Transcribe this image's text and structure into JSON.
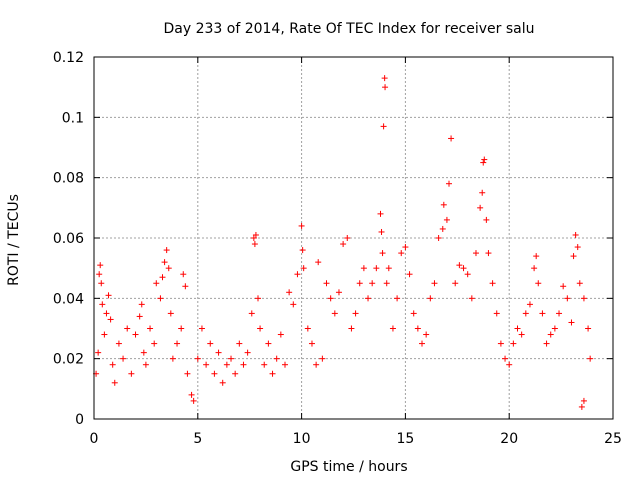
{
  "chart_data": {
    "type": "scatter",
    "title": "Day 233 of 2014, Rate Of TEC Index for receiver salu",
    "xlabel": "GPS time / hours",
    "ylabel": "ROTI / TECUs",
    "xlim": [
      0,
      25
    ],
    "ylim": [
      0,
      0.12
    ],
    "xticks": [
      0,
      5,
      10,
      15,
      20,
      25
    ],
    "xtick_labels": [
      "0",
      "5",
      "10",
      "15",
      "20",
      "25"
    ],
    "yticks": [
      0,
      0.02,
      0.04,
      0.06,
      0.08,
      0.1,
      0.12
    ],
    "ytick_labels": [
      "0",
      "0.02",
      "0.04",
      "0.06",
      "0.08",
      "0.1",
      "0.12"
    ],
    "grid": true,
    "marker": "+",
    "color": "#ff0000",
    "series": [
      {
        "name": "ROTI",
        "points": [
          [
            0.1,
            0.015
          ],
          [
            0.2,
            0.022
          ],
          [
            0.25,
            0.048
          ],
          [
            0.3,
            0.051
          ],
          [
            0.35,
            0.045
          ],
          [
            0.4,
            0.038
          ],
          [
            0.5,
            0.028
          ],
          [
            0.6,
            0.035
          ],
          [
            0.7,
            0.041
          ],
          [
            0.8,
            0.033
          ],
          [
            0.9,
            0.018
          ],
          [
            1.0,
            0.012
          ],
          [
            1.2,
            0.025
          ],
          [
            1.4,
            0.02
          ],
          [
            1.6,
            0.03
          ],
          [
            1.8,
            0.015
          ],
          [
            2.0,
            0.028
          ],
          [
            2.2,
            0.034
          ],
          [
            2.3,
            0.038
          ],
          [
            2.4,
            0.022
          ],
          [
            2.5,
            0.018
          ],
          [
            2.7,
            0.03
          ],
          [
            2.9,
            0.025
          ],
          [
            3.0,
            0.045
          ],
          [
            3.2,
            0.04
          ],
          [
            3.3,
            0.047
          ],
          [
            3.4,
            0.052
          ],
          [
            3.5,
            0.056
          ],
          [
            3.6,
            0.05
          ],
          [
            3.7,
            0.035
          ],
          [
            3.8,
            0.02
          ],
          [
            4.0,
            0.025
          ],
          [
            4.2,
            0.03
          ],
          [
            4.3,
            0.048
          ],
          [
            4.4,
            0.044
          ],
          [
            4.5,
            0.015
          ],
          [
            4.7,
            0.008
          ],
          [
            4.8,
            0.006
          ],
          [
            5.0,
            0.02
          ],
          [
            5.2,
            0.03
          ],
          [
            5.4,
            0.018
          ],
          [
            5.6,
            0.025
          ],
          [
            5.8,
            0.015
          ],
          [
            6.0,
            0.022
          ],
          [
            6.2,
            0.012
          ],
          [
            6.4,
            0.018
          ],
          [
            6.6,
            0.02
          ],
          [
            6.8,
            0.015
          ],
          [
            7.0,
            0.025
          ],
          [
            7.2,
            0.018
          ],
          [
            7.4,
            0.022
          ],
          [
            7.6,
            0.035
          ],
          [
            7.7,
            0.06
          ],
          [
            7.75,
            0.058
          ],
          [
            7.8,
            0.061
          ],
          [
            7.9,
            0.04
          ],
          [
            8.0,
            0.03
          ],
          [
            8.2,
            0.018
          ],
          [
            8.4,
            0.025
          ],
          [
            8.6,
            0.015
          ],
          [
            8.8,
            0.02
          ],
          [
            9.0,
            0.028
          ],
          [
            9.2,
            0.018
          ],
          [
            9.4,
            0.042
          ],
          [
            9.6,
            0.038
          ],
          [
            9.8,
            0.048
          ],
          [
            10.0,
            0.064
          ],
          [
            10.05,
            0.056
          ],
          [
            10.1,
            0.05
          ],
          [
            10.3,
            0.03
          ],
          [
            10.5,
            0.025
          ],
          [
            10.7,
            0.018
          ],
          [
            10.8,
            0.052
          ],
          [
            11.0,
            0.02
          ],
          [
            11.2,
            0.045
          ],
          [
            11.4,
            0.04
          ],
          [
            11.6,
            0.035
          ],
          [
            11.8,
            0.042
          ],
          [
            12.0,
            0.058
          ],
          [
            12.2,
            0.06
          ],
          [
            12.4,
            0.03
          ],
          [
            12.6,
            0.035
          ],
          [
            12.8,
            0.045
          ],
          [
            13.0,
            0.05
          ],
          [
            13.2,
            0.04
          ],
          [
            13.4,
            0.045
          ],
          [
            13.6,
            0.05
          ],
          [
            13.8,
            0.068
          ],
          [
            13.85,
            0.062
          ],
          [
            13.9,
            0.055
          ],
          [
            13.95,
            0.097
          ],
          [
            14.0,
            0.113
          ],
          [
            14.02,
            0.11
          ],
          [
            14.1,
            0.045
          ],
          [
            14.2,
            0.05
          ],
          [
            14.4,
            0.03
          ],
          [
            14.6,
            0.04
          ],
          [
            14.8,
            0.055
          ],
          [
            15.0,
            0.057
          ],
          [
            15.2,
            0.048
          ],
          [
            15.4,
            0.035
          ],
          [
            15.6,
            0.03
          ],
          [
            15.8,
            0.025
          ],
          [
            16.0,
            0.028
          ],
          [
            16.2,
            0.04
          ],
          [
            16.4,
            0.045
          ],
          [
            16.6,
            0.06
          ],
          [
            16.8,
            0.063
          ],
          [
            16.85,
            0.071
          ],
          [
            17.0,
            0.066
          ],
          [
            17.1,
            0.078
          ],
          [
            17.2,
            0.093
          ],
          [
            17.4,
            0.045
          ],
          [
            17.6,
            0.051
          ],
          [
            17.8,
            0.05
          ],
          [
            18.0,
            0.048
          ],
          [
            18.2,
            0.04
          ],
          [
            18.4,
            0.055
          ],
          [
            18.6,
            0.07
          ],
          [
            18.7,
            0.075
          ],
          [
            18.75,
            0.085
          ],
          [
            18.8,
            0.086
          ],
          [
            18.9,
            0.066
          ],
          [
            19.0,
            0.055
          ],
          [
            19.2,
            0.045
          ],
          [
            19.4,
            0.035
          ],
          [
            19.6,
            0.025
          ],
          [
            19.8,
            0.02
          ],
          [
            20.0,
            0.018
          ],
          [
            20.2,
            0.025
          ],
          [
            20.4,
            0.03
          ],
          [
            20.6,
            0.028
          ],
          [
            20.8,
            0.035
          ],
          [
            21.0,
            0.038
          ],
          [
            21.2,
            0.05
          ],
          [
            21.3,
            0.054
          ],
          [
            21.4,
            0.045
          ],
          [
            21.6,
            0.035
          ],
          [
            21.8,
            0.025
          ],
          [
            22.0,
            0.028
          ],
          [
            22.2,
            0.03
          ],
          [
            22.4,
            0.035
          ],
          [
            22.6,
            0.044
          ],
          [
            22.8,
            0.04
          ],
          [
            23.0,
            0.032
          ],
          [
            23.1,
            0.054
          ],
          [
            23.2,
            0.061
          ],
          [
            23.3,
            0.057
          ],
          [
            23.4,
            0.045
          ],
          [
            23.6,
            0.04
          ],
          [
            23.8,
            0.03
          ],
          [
            23.5,
            0.004
          ],
          [
            23.6,
            0.006
          ],
          [
            23.9,
            0.02
          ]
        ]
      }
    ]
  }
}
